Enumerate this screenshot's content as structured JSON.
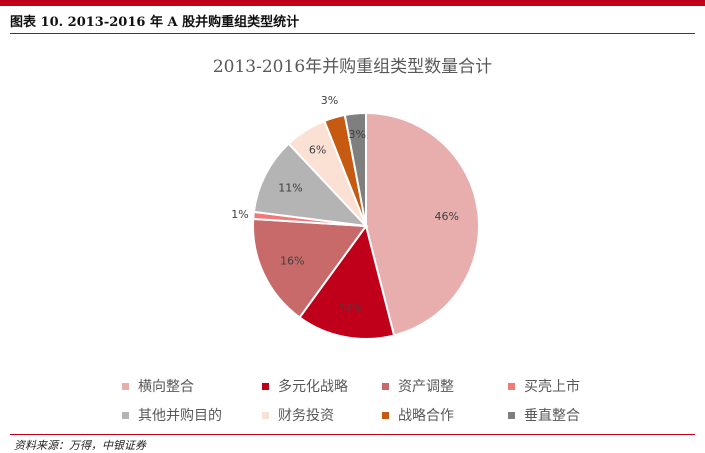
{
  "caption": "图表 10. 2013-2016 年 A 股并购重组类型统计",
  "source": "资料来源：万得，中银证券",
  "chart_data": {
    "type": "pie",
    "title": "2013-2016年并购重组类型数量合计",
    "slices": [
      {
        "name": "横向整合",
        "value": 46,
        "label": "46%",
        "color": "#e8aeae"
      },
      {
        "name": "多元化战略",
        "value": 14,
        "label": "14%",
        "color": "#c0001a"
      },
      {
        "name": "资产调整",
        "value": 16,
        "label": "16%",
        "color": "#c96a6a"
      },
      {
        "name": "买壳上市",
        "value": 1,
        "label": "1%",
        "color": "#f07a7a"
      },
      {
        "name": "其他并购目的",
        "value": 11,
        "label": "11%",
        "color": "#b4b4b4"
      },
      {
        "name": "财务投资",
        "value": 6,
        "label": "6%",
        "color": "#fbe1d4"
      },
      {
        "name": "战略合作",
        "value": 3,
        "label": "3%",
        "color": "#c65a11"
      },
      {
        "name": "垂直整合",
        "value": 3,
        "label": "3%",
        "color": "#7f7f7f"
      }
    ],
    "legend_position": "bottom"
  }
}
